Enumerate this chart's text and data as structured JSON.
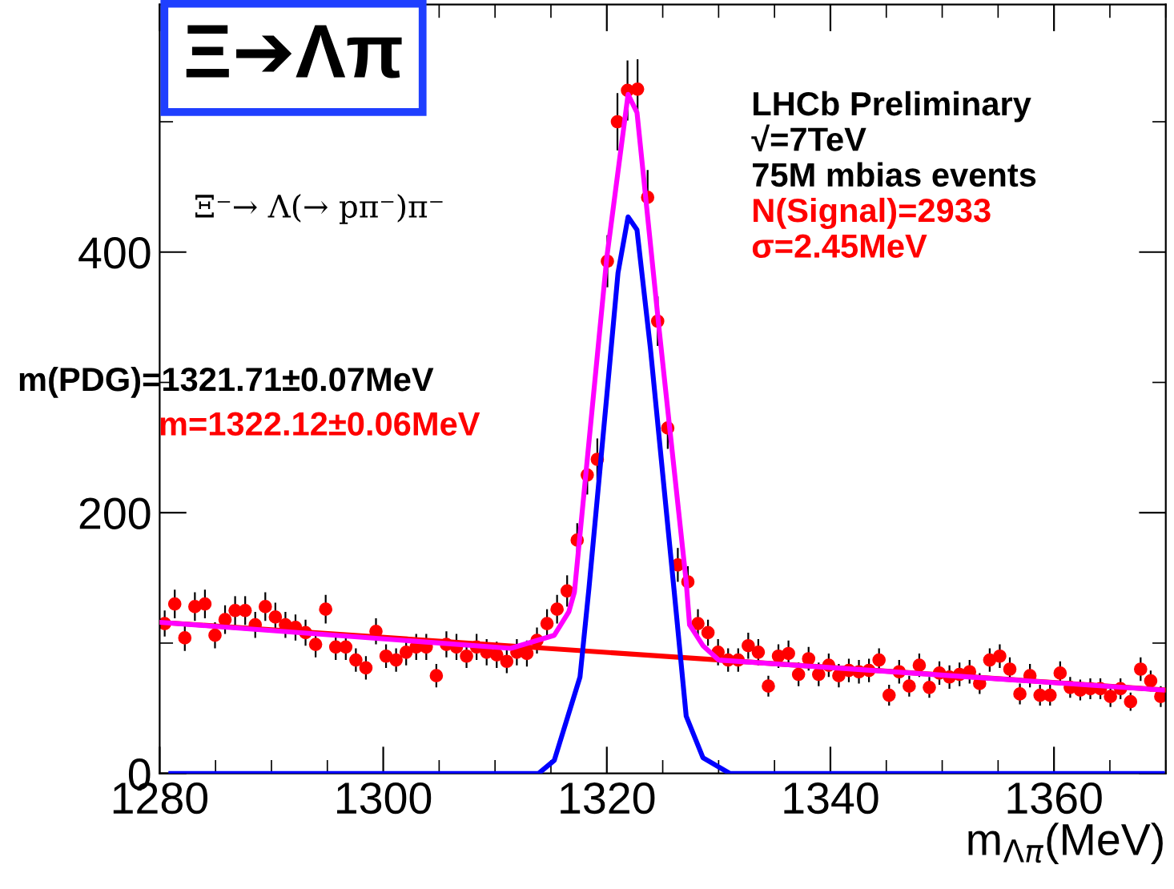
{
  "chart_data": {
    "type": "scatter",
    "title": "Ξ➔Λπ",
    "subtitle": "Ξ⁻→ Λ(→ pπ⁻)π⁻",
    "xlabel": "m$_{Λπ}$(MeV)",
    "xlim": [
      1280,
      1370
    ],
    "xticks": [
      1280,
      1300,
      1320,
      1340,
      1360
    ],
    "ylim": [
      0,
      590
    ],
    "yticks": [
      0,
      200,
      400
    ],
    "grid": false,
    "legend": false,
    "annotations": [
      "LHCb Preliminary",
      "√=7TeV",
      "75M mbias events",
      "N(Signal)=2933",
      "σ=2.45MeV",
      "m(PDG)=1321.71±0.07MeV",
      "m=1322.12±0.06MeV"
    ],
    "series": [
      {
        "color": "#ff0000",
        "marker": "circle",
        "x": [
          1280.45,
          1281.35,
          1282.25,
          1283.15,
          1284.05,
          1284.95,
          1285.85,
          1286.75,
          1287.65,
          1288.55,
          1289.45,
          1290.35,
          1291.25,
          1292.15,
          1293.05,
          1293.95,
          1294.85,
          1295.75,
          1296.65,
          1297.55,
          1298.45,
          1299.35,
          1300.25,
          1301.15,
          1302.05,
          1302.95,
          1303.85,
          1304.75,
          1305.65,
          1306.55,
          1307.45,
          1308.35,
          1309.25,
          1310.15,
          1311.05,
          1311.95,
          1312.85,
          1313.75,
          1314.65,
          1315.55,
          1316.45,
          1317.35,
          1318.25,
          1319.15,
          1320.05,
          1320.95,
          1321.85,
          1322.75,
          1323.65,
          1324.55,
          1325.45,
          1326.35,
          1327.25,
          1328.15,
          1329.05,
          1329.95,
          1330.85,
          1331.75,
          1332.65,
          1333.55,
          1334.45,
          1335.35,
          1336.25,
          1337.15,
          1338.05,
          1338.95,
          1339.85,
          1340.75,
          1341.65,
          1342.55,
          1343.45,
          1344.35,
          1345.25,
          1346.15,
          1347.05,
          1347.95,
          1348.85,
          1349.75,
          1350.65,
          1351.55,
          1352.45,
          1353.35,
          1354.25,
          1355.15,
          1356.05,
          1356.95,
          1357.85,
          1358.75,
          1359.65,
          1360.55,
          1361.45,
          1362.35,
          1363.25,
          1364.15,
          1365.05,
          1365.95,
          1366.85,
          1367.75,
          1368.65,
          1369.55
        ],
        "values": [
          115,
          130,
          104,
          128,
          130,
          106,
          118,
          125,
          125,
          114,
          128,
          120,
          114,
          112,
          108,
          99,
          126,
          97,
          97,
          87,
          81,
          109,
          90,
          87,
          93,
          97,
          97,
          75,
          99,
          97,
          90,
          97,
          93,
          91,
          86,
          93,
          92,
          102,
          115,
          126,
          140,
          179,
          229,
          241,
          393,
          500,
          524,
          525,
          442,
          347,
          265,
          160,
          147,
          115,
          108,
          93,
          87,
          87,
          98,
          93,
          67,
          90,
          92,
          76,
          88,
          76,
          83,
          75,
          79,
          78,
          79,
          87,
          60,
          78,
          67,
          83,
          66,
          77,
          74,
          76,
          78,
          69,
          87,
          90,
          80,
          61,
          75,
          60,
          60,
          77,
          66,
          64,
          65,
          65,
          59,
          65,
          55,
          80,
          71,
          59
        ],
        "errors": [
          10,
          11,
          10,
          11,
          11,
          10,
          11,
          11,
          11,
          10,
          11,
          11,
          10,
          10,
          10,
          10,
          11,
          10,
          10,
          9,
          9,
          10,
          9,
          9,
          10,
          10,
          10,
          9,
          10,
          10,
          9,
          10,
          10,
          10,
          9,
          10,
          10,
          10,
          11,
          11,
          12,
          13,
          15,
          16,
          20,
          22,
          23,
          23,
          21,
          19,
          16,
          13,
          12,
          11,
          10,
          10,
          9,
          9,
          10,
          10,
          8,
          9,
          10,
          9,
          9,
          9,
          9,
          9,
          9,
          9,
          9,
          9,
          8,
          9,
          8,
          9,
          8,
          9,
          9,
          9,
          9,
          8,
          9,
          9,
          9,
          8,
          9,
          8,
          8,
          9,
          8,
          8,
          8,
          8,
          8,
          8,
          7,
          9,
          8,
          8
        ]
      },
      {
        "type": "line",
        "color": "#ff0000",
        "x": [
          1280,
          1370
        ],
        "values": [
          116,
          64
        ]
      },
      {
        "type": "line",
        "color": "#0000ff",
        "x": [
          1281,
          1313.9,
          1315.3,
          1317.6,
          1318.4,
          1320,
          1321,
          1321.9,
          1322.7,
          1323.9,
          1326,
          1327.1,
          1328.6,
          1331,
          1369.7
        ],
        "values": [
          0,
          0,
          10,
          74,
          142,
          290,
          384,
          427,
          417,
          326,
          142,
          44,
          12,
          0,
          0
        ]
      },
      {
        "type": "line",
        "color": "#ff00ff",
        "x": [
          1280,
          1311.4,
          1315.3,
          1316.6,
          1317.1,
          1320,
          1321.9,
          1322.7,
          1324.7,
          1327.1,
          1327.4,
          1328.6,
          1330,
          1369.7
        ],
        "values": [
          116,
          96,
          106,
          124,
          139,
          396,
          521,
          507,
          339,
          147,
          114,
          98,
          87,
          64
        ]
      }
    ]
  }
}
